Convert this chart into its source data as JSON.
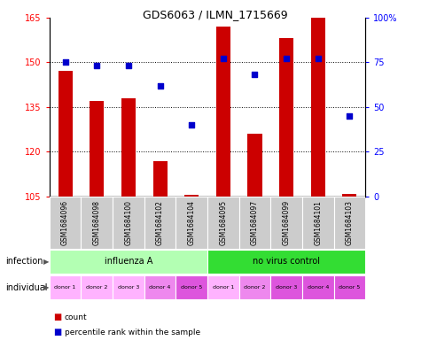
{
  "title": "GDS6063 / ILMN_1715669",
  "samples": [
    "GSM1684096",
    "GSM1684098",
    "GSM1684100",
    "GSM1684102",
    "GSM1684104",
    "GSM1684095",
    "GSM1684097",
    "GSM1684099",
    "GSM1684101",
    "GSM1684103"
  ],
  "counts": [
    147,
    137,
    138,
    117,
    105.5,
    162,
    126,
    158,
    165,
    106
  ],
  "percentiles": [
    75,
    73,
    73,
    62,
    40,
    77,
    68,
    77,
    77,
    45
  ],
  "ylim_left": [
    105,
    165
  ],
  "ylim_right": [
    0,
    100
  ],
  "yticks_left": [
    105,
    120,
    135,
    150,
    165
  ],
  "yticks_right": [
    0,
    25,
    50,
    75,
    100
  ],
  "bar_color": "#cc0000",
  "dot_color": "#0000cc",
  "bar_bottom": 105,
  "infection_groups": [
    {
      "label": "influenza A",
      "start": 0,
      "end": 5,
      "color": "#b3ffb3"
    },
    {
      "label": "no virus control",
      "start": 5,
      "end": 10,
      "color": "#33dd33"
    }
  ],
  "individual_labels": [
    "donor 1",
    "donor 2",
    "donor 3",
    "donor 4",
    "donor 5",
    "donor 1",
    "donor 2",
    "donor 3",
    "donor 4",
    "donor 5"
  ],
  "ind_colors": [
    "#ffb3ff",
    "#ffb3ff",
    "#ffb3ff",
    "#ee88ee",
    "#dd55dd",
    "#ffb3ff",
    "#ee88ee",
    "#dd55dd",
    "#dd55dd",
    "#dd55dd"
  ],
  "sample_box_color": "#cccccc",
  "bg_color": "#ffffff"
}
